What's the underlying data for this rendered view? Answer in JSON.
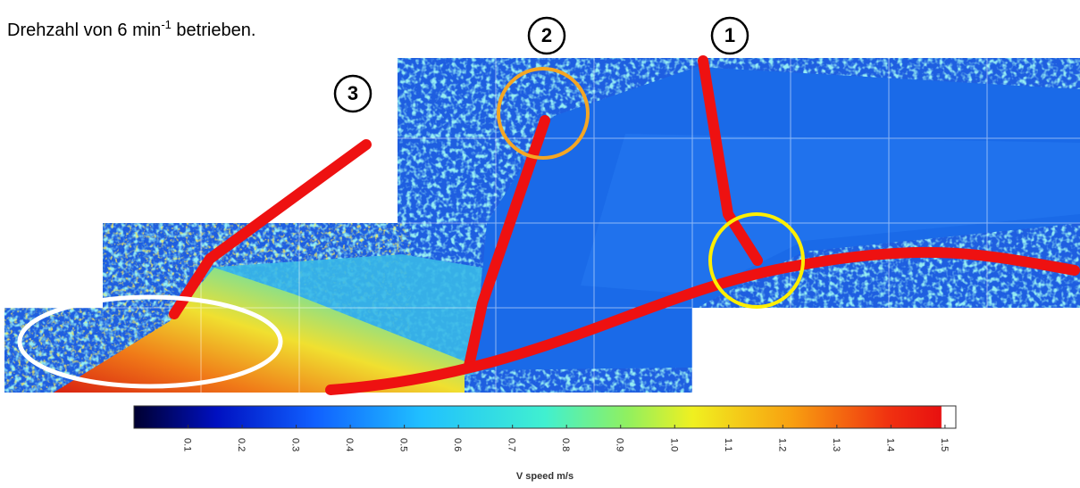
{
  "caption": {
    "text": "Drehzahl von 6 min",
    "superscript": "-1",
    "text_after": " betrieben."
  },
  "markers": [
    "1",
    "2",
    "3"
  ],
  "chart_data": {
    "type": "colorbar",
    "xlabel": "V speed m/s",
    "xlim": [
      0,
      1.52
    ],
    "xticks": [
      0.1,
      0.2,
      0.3,
      0.4,
      0.5,
      0.6,
      0.7,
      0.8,
      0.9,
      {
        "value": 1,
        "label": "1.0"
      },
      1.1,
      1.2,
      1.3,
      1.4,
      1.5
    ]
  }
}
